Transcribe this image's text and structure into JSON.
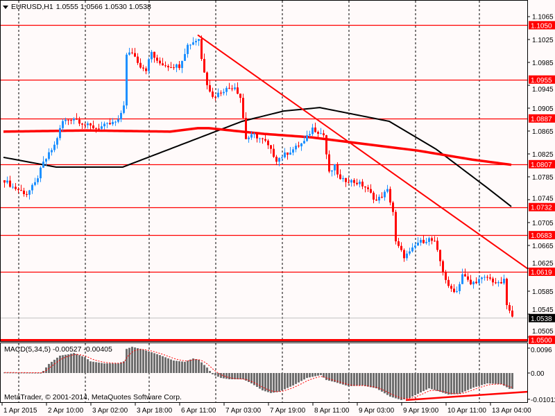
{
  "header": {
    "symbol_timeframe": "EURUSD,H1",
    "ohlc": "1.0555 1.0566 1.0530 1.0538"
  },
  "macd_panel": {
    "label": "MACD(5,34,5) -0.00527 -0.00405",
    "copyright": "MetaTrader, © 2001-2014, MetaQuotes Software Corp."
  },
  "colors": {
    "background": "#fffafa",
    "bull": "#1e90ff",
    "bear": "#ff0000",
    "level": "#ff0000",
    "ma_slow": "#000000",
    "ma_fast": "#ff0000",
    "macd_hist": "#6e6e6e"
  },
  "chart_data": [
    {
      "type": "candlestick",
      "title": "EURUSD,H1",
      "ylim": [
        1.0494,
        1.1094
      ],
      "y_ticks": [
        "1.1065",
        "1.1025",
        "1.0985",
        "1.0945",
        "1.0905",
        "1.0865",
        "1.0825",
        "1.0785",
        "1.0745",
        "1.0705",
        "1.0665",
        "1.0625",
        "1.0585",
        "1.0545",
        "1.0505"
      ],
      "x_tick_labels": [
        "1 Apr 2015",
        "2 Apr 10:00",
        "3 Apr 02:00",
        "3 Apr 18:00",
        "6 Apr 11:00",
        "7 Apr 03:00",
        "7 Apr 19:00",
        "8 Apr 11:00",
        "9 Apr 03:00",
        "9 Apr 19:00",
        "10 Apr 11:00",
        "13 Apr 04:00"
      ],
      "candle_count": 184,
      "close_path": [
        [
          0,
          1.0779
        ],
        [
          3,
          1.0767
        ],
        [
          8,
          1.0755
        ],
        [
          11,
          1.0773
        ],
        [
          14,
          1.0809
        ],
        [
          18,
          1.084
        ],
        [
          21,
          1.0882
        ],
        [
          25,
          1.0888
        ],
        [
          29,
          1.0876
        ],
        [
          33,
          1.087
        ],
        [
          36,
          1.0874
        ],
        [
          41,
          1.0882
        ],
        [
          43,
          1.0912
        ],
        [
          44,
          1.0997
        ],
        [
          46,
          1.1003
        ],
        [
          49,
          1.0979
        ],
        [
          51,
          1.0973
        ],
        [
          53,
          1.1003
        ],
        [
          55,
          1.0985
        ],
        [
          59,
          1.0979
        ],
        [
          63,
          1.0979
        ],
        [
          66,
          1.1015
        ],
        [
          70,
          1.1027
        ],
        [
          71,
          1.0991
        ],
        [
          73,
          1.0949
        ],
        [
          75,
          1.0924
        ],
        [
          79,
          1.0937
        ],
        [
          83,
          1.0943
        ],
        [
          85,
          1.0924
        ],
        [
          87,
          1.0852
        ],
        [
          90,
          1.0858
        ],
        [
          94,
          1.0846
        ],
        [
          98,
          1.0815
        ],
        [
          100,
          1.0821
        ],
        [
          104,
          1.0833
        ],
        [
          108,
          1.0846
        ],
        [
          111,
          1.087
        ],
        [
          115,
          1.0858
        ],
        [
          117,
          1.0791
        ],
        [
          119,
          1.0803
        ],
        [
          121,
          1.0779
        ],
        [
          124,
          1.0779
        ],
        [
          128,
          1.0773
        ],
        [
          130,
          1.0767
        ],
        [
          134,
          1.0743
        ],
        [
          138,
          1.0761
        ],
        [
          140,
          1.0724
        ],
        [
          141,
          1.067
        ],
        [
          144,
          1.0646
        ],
        [
          146,
          1.0652
        ],
        [
          149,
          1.067
        ],
        [
          153,
          1.0676
        ],
        [
          155,
          1.067
        ],
        [
          158,
          1.0621
        ],
        [
          160,
          1.0591
        ],
        [
          163,
          1.0585
        ],
        [
          165,
          1.0615
        ],
        [
          168,
          1.0597
        ],
        [
          170,
          1.0603
        ],
        [
          174,
          1.0609
        ],
        [
          176,
          1.0603
        ],
        [
          178,
          1.0597
        ],
        [
          180,
          1.0603
        ],
        [
          181,
          1.0561
        ],
        [
          183,
          1.0538
        ]
      ],
      "ma_slow": [
        [
          0,
          1.0819
        ],
        [
          19,
          1.0802
        ],
        [
          43,
          1.0802
        ],
        [
          86,
          1.0882
        ],
        [
          101,
          1.09
        ],
        [
          114,
          1.0906
        ],
        [
          139,
          1.0882
        ],
        [
          156,
          1.0833
        ],
        [
          174,
          1.0767
        ],
        [
          183,
          1.0733
        ]
      ],
      "ma_fast": [
        [
          0,
          1.0864
        ],
        [
          30,
          1.0866
        ],
        [
          60,
          1.0864
        ],
        [
          70,
          1.087
        ],
        [
          74,
          1.087
        ],
        [
          94,
          1.086
        ],
        [
          111,
          1.0854
        ],
        [
          124,
          1.0846
        ],
        [
          149,
          1.0831
        ],
        [
          169,
          1.0815
        ],
        [
          183,
          1.0806
        ]
      ],
      "trendline": [
        [
          70,
          1.1033
        ],
        [
          189,
          1.0624
        ]
      ],
      "levels": [
        "1.1050",
        "1.0955",
        "1.0887",
        "1.0807",
        "1.0732",
        "1.0683",
        "1.0619",
        "1.0500"
      ],
      "current_price": "1.0538"
    },
    {
      "type": "bar",
      "title": "MACD(5,34,5)",
      "ylim": [
        -0.0113,
        0.0115
      ],
      "y_ticks": [
        "0.0096",
        "0.00",
        "-0.01011"
      ],
      "histogram_path": [
        [
          0,
          0.0002
        ],
        [
          13,
          0.0001
        ],
        [
          14,
          0.0008
        ],
        [
          16,
          0.0035
        ],
        [
          20,
          0.0067
        ],
        [
          23,
          0.0072
        ],
        [
          25,
          0.0077
        ],
        [
          29,
          0.0061
        ],
        [
          31,
          0.0045
        ],
        [
          36,
          0.0037
        ],
        [
          41,
          0.0037
        ],
        [
          43,
          0.0045
        ],
        [
          44,
          0.0093
        ],
        [
          46,
          0.0101
        ],
        [
          49,
          0.0093
        ],
        [
          53,
          0.008
        ],
        [
          56,
          0.0069
        ],
        [
          61,
          0.0048
        ],
        [
          65,
          0.0043
        ],
        [
          68,
          0.0056
        ],
        [
          70,
          0.0051
        ],
        [
          73,
          0.0021
        ],
        [
          75,
          -0.0005
        ],
        [
          78,
          -0.0019
        ],
        [
          81,
          -0.0024
        ],
        [
          86,
          -0.0024
        ],
        [
          89,
          -0.004
        ],
        [
          93,
          -0.0067
        ],
        [
          96,
          -0.0077
        ],
        [
          99,
          -0.0072
        ],
        [
          104,
          -0.0048
        ],
        [
          109,
          -0.0019
        ],
        [
          114,
          -0.0008
        ],
        [
          116,
          -0.0027
        ],
        [
          119,
          -0.0035
        ],
        [
          124,
          -0.0051
        ],
        [
          129,
          -0.0048
        ],
        [
          134,
          -0.0059
        ],
        [
          139,
          -0.0091
        ],
        [
          143,
          -0.0104
        ],
        [
          146,
          -0.0096
        ],
        [
          149,
          -0.008
        ],
        [
          153,
          -0.0059
        ],
        [
          156,
          -0.0069
        ],
        [
          160,
          -0.0083
        ],
        [
          164,
          -0.008
        ],
        [
          169,
          -0.0056
        ],
        [
          174,
          -0.004
        ],
        [
          179,
          -0.0043
        ],
        [
          182,
          -0.0061
        ]
      ],
      "trendline": [
        [
          145,
          -0.0104
        ],
        [
          189,
          -0.0072
        ]
      ]
    }
  ]
}
